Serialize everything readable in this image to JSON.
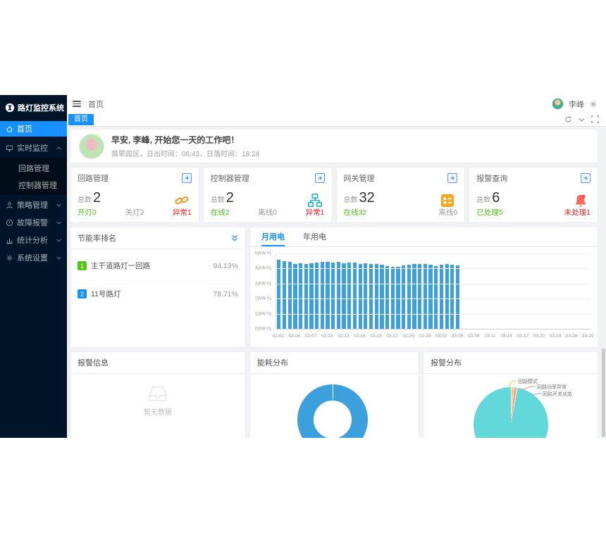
{
  "app_title": "路灯监控系统",
  "colors": {
    "accent": "#1890ff",
    "sidebar_bg": "#001529",
    "content_bg": "#f0f2f5",
    "green": "#52c41a",
    "red": "#f5222d",
    "bar_blue": "#3ba0dc",
    "donut_blue": "#3ba0dc",
    "pie_teal": "#63d8db"
  },
  "sidebar": {
    "logo": "路灯监控系统",
    "items": [
      {
        "label": "首页",
        "active": true
      },
      {
        "label": "实时监控",
        "expanded": true,
        "children": [
          "回路管理",
          "控制器管理"
        ]
      },
      {
        "label": "策略管理"
      },
      {
        "label": "故障报警"
      },
      {
        "label": "统计分析"
      },
      {
        "label": "系统设置"
      }
    ]
  },
  "header": {
    "breadcrumb": "首页",
    "user_name": "李峰"
  },
  "tabbar": {
    "active_tab": "首页"
  },
  "greeting": {
    "title": "早安, 李峰, 开始您一天的工作吧！",
    "subtitle": "翡翠园区，日出时间：06:43，日落时间：18:24"
  },
  "stat_cards": [
    {
      "title": "回路管理",
      "total_label": "总数",
      "total": "2",
      "icon": "link-icon",
      "icon_color": "#efa030",
      "stats": [
        {
          "label": "开灯",
          "value": "0",
          "color": "#52c41a"
        },
        {
          "label": "关灯",
          "value": "2",
          "color": "#9b9b9b"
        },
        {
          "label": "异常",
          "value": "1",
          "color": "#f5222d"
        }
      ]
    },
    {
      "title": "控制器管理",
      "total_label": "总数",
      "total": "2",
      "icon": "sitemap-icon",
      "icon_color": "#27b3c1",
      "stats": [
        {
          "label": "在线",
          "value": "2",
          "color": "#52c41a"
        },
        {
          "label": "离线",
          "value": "0",
          "color": "#9b9b9b"
        },
        {
          "label": "异常",
          "value": "1",
          "color": "#f5222d"
        }
      ]
    },
    {
      "title": "网关管理",
      "total_label": "总数",
      "total": "32",
      "icon": "gateway-icon",
      "icon_color": "#f5a623",
      "stats": [
        {
          "label": "在线",
          "value": "32",
          "color": "#52c41a"
        },
        {
          "label": "离线",
          "value": "0",
          "color": "#9b9b9b"
        }
      ]
    },
    {
      "title": "报警查询",
      "total_label": "总数",
      "total": "6",
      "icon": "bell-icon",
      "icon_color": "#f56a62",
      "stats": [
        {
          "label": "已处理",
          "value": "5",
          "color": "#52c41a"
        },
        {
          "label": "未处理",
          "value": "1",
          "color": "#f5222d"
        }
      ]
    }
  ],
  "ranking": {
    "title": "节能率排名",
    "items": [
      {
        "rank": "1",
        "name": "主干道路灯一回路",
        "value": "94.13%",
        "badge_color": "#52c41a"
      },
      {
        "rank": "2",
        "name": "11号路灯",
        "value": "78.71%",
        "badge_color": "#1890ff"
      }
    ]
  },
  "alarm_info": {
    "title": "报警信息",
    "empty_text": "暂无数据"
  },
  "chart_data": [
    {
      "id": "monthly-energy",
      "type": "bar",
      "tabs": [
        "月用电",
        "年用电"
      ],
      "active_tab": "月用电",
      "ylim": [
        0,
        5
      ],
      "unit": "kW·h",
      "ytick_labels": [
        "5(kW·h)",
        "4(kW·h)",
        "3(kW·h)",
        "2(kW·h)",
        "1(kW·h)",
        "0(kW·h)"
      ],
      "total_slots": 58,
      "xtick_every": 3,
      "xtick_labels": [
        "02-01",
        "02-04",
        "02-07",
        "02-10",
        "02-13",
        "02-16",
        "02-19",
        "02-22",
        "02-25",
        "02-28",
        "03-02",
        "03-05",
        "03-08",
        "03-11",
        "03-14",
        "03-17",
        "03-20",
        "03-23",
        "03-26",
        "03-29"
      ],
      "x": [
        "02-01",
        "02-02",
        "02-03",
        "02-04",
        "02-05",
        "02-06",
        "02-07",
        "02-08",
        "02-09",
        "02-10",
        "02-11",
        "02-12",
        "02-13",
        "02-14",
        "02-15",
        "02-16",
        "02-17",
        "02-18",
        "02-19",
        "02-20",
        "02-21",
        "02-22",
        "02-23",
        "02-24",
        "02-25",
        "02-26",
        "02-27",
        "02-28",
        "02-29",
        "03-01",
        "03-02",
        "03-03",
        "03-04",
        "03-05"
      ],
      "values": [
        4.56,
        4.5,
        4.46,
        4.31,
        4.36,
        4.3,
        4.34,
        4.4,
        4.42,
        4.45,
        4.41,
        4.42,
        4.36,
        4.4,
        4.38,
        4.31,
        4.35,
        4.3,
        4.32,
        4.26,
        4.16,
        4.1,
        4.12,
        4.2,
        4.26,
        4.3,
        4.28,
        4.31,
        4.26,
        4.16,
        4.24,
        4.3,
        4.26,
        4.22
      ],
      "bar_color": "#3ba0dc",
      "grid": true,
      "legend": false
    },
    {
      "id": "energy-distribution",
      "type": "pie",
      "title": "能耗分布",
      "donut": true,
      "slices": [
        {
          "value": 100,
          "color": "#3ba0dc"
        }
      ]
    },
    {
      "id": "alarm-distribution",
      "type": "pie",
      "title": "报警分布",
      "donut": false,
      "slices": [
        {
          "name": "回路模式",
          "value": 1.0,
          "color": "#f2c94c",
          "line_color": "#edc65c"
        },
        {
          "name": "回路功率异常",
          "value": 1.5,
          "color": "#f2a08e",
          "line_color": "#ef9a8e"
        },
        {
          "name": "回路开关状态",
          "value": 97.5,
          "color": "#63d8db",
          "line_color": "#85aed1"
        }
      ],
      "legend": "leader-labels"
    }
  ]
}
